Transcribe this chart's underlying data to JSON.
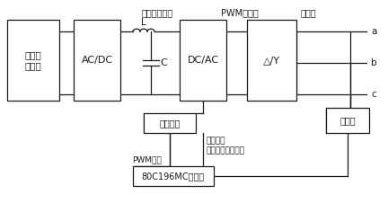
{
  "bg_color": "#ffffff",
  "line_color": "#1a1a1a",
  "figsize": [
    4.32,
    2.46
  ],
  "dpi": 100,
  "labels": {
    "diesel": "柴油发\n电机组",
    "acdc": "AC/DC",
    "dcac": "DC/AC",
    "transformer": "△/Y",
    "driver": "驱动电路",
    "mcu": "80C196MC单片机",
    "sensor": "传感器",
    "top_acdc": "不可控整流器",
    "top_pwm": "PWM整流器",
    "top_transformer": "变压器",
    "L_label": "L",
    "C_label": "C",
    "pwm_signal": "PWM信号",
    "status1": "状态监控",
    "status2": "输出电压反馈控制",
    "a": "a",
    "b": "b",
    "c": "c"
  }
}
